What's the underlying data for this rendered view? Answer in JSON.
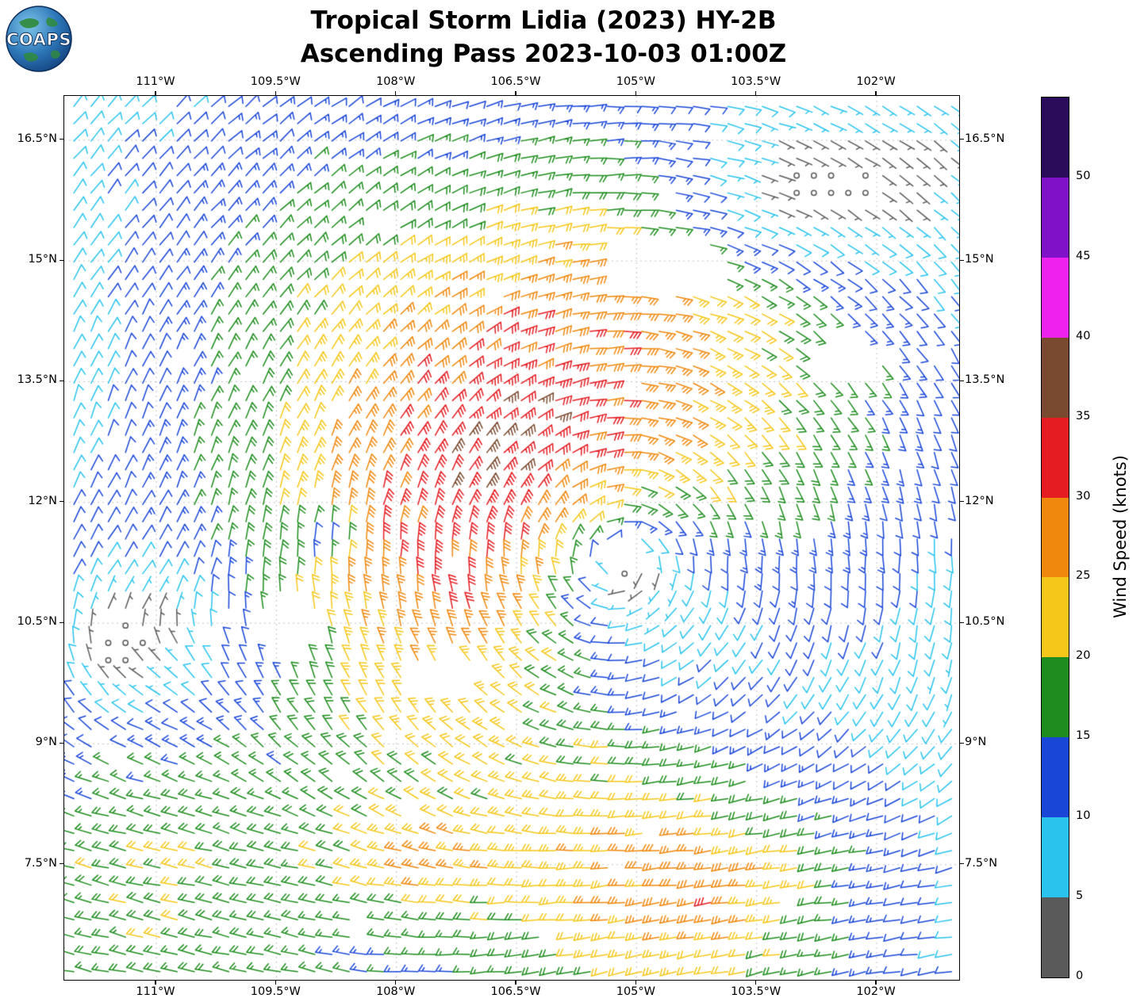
{
  "header": {
    "title_line1": "Tropical Storm Lidia (2023) HY-2B",
    "title_line2": "Ascending Pass 2023-10-03 01:00Z",
    "logo_text": "COAPS"
  },
  "axes": {
    "lon_ticks": [
      {
        "value": -111,
        "label": "111°W"
      },
      {
        "value": -109.5,
        "label": "109.5°W"
      },
      {
        "value": -108,
        "label": "108°W"
      },
      {
        "value": -106.5,
        "label": "106.5°W"
      },
      {
        "value": -105,
        "label": "105°W"
      },
      {
        "value": -103.5,
        "label": "103.5°W"
      },
      {
        "value": -102,
        "label": "102°W"
      }
    ],
    "lat_ticks": [
      {
        "value": 16.5,
        "label": "16.5°N"
      },
      {
        "value": 15,
        "label": "15°N"
      },
      {
        "value": 13.5,
        "label": "13.5°N"
      },
      {
        "value": 12,
        "label": "12°N"
      },
      {
        "value": 10.5,
        "label": "10.5°N"
      },
      {
        "value": 9,
        "label": "9°N"
      },
      {
        "value": 7.5,
        "label": "7.5°N"
      }
    ],
    "lon_range": [
      -112.15,
      -100.95
    ],
    "lat_range": [
      6.05,
      17.05
    ],
    "grid_style": "dotted"
  },
  "colorbar": {
    "label": "Wind Speed (knots)",
    "tick_values": [
      0,
      5,
      10,
      15,
      20,
      25,
      30,
      35,
      40,
      45,
      50
    ],
    "max_value": 55,
    "levels": [
      {
        "min": 0,
        "max": 5,
        "color": "#5a5a5a"
      },
      {
        "min": 5,
        "max": 10,
        "color": "#29c3ee"
      },
      {
        "min": 10,
        "max": 15,
        "color": "#1a46d8"
      },
      {
        "min": 15,
        "max": 20,
        "color": "#1e8c1e"
      },
      {
        "min": 20,
        "max": 25,
        "color": "#f5c71a"
      },
      {
        "min": 25,
        "max": 30,
        "color": "#f0880e"
      },
      {
        "min": 30,
        "max": 35,
        "color": "#e51d23"
      },
      {
        "min": 35,
        "max": 40,
        "color": "#7a4a30"
      },
      {
        "min": 40,
        "max": 45,
        "color": "#ee22ee"
      },
      {
        "min": 45,
        "max": 50,
        "color": "#7f12c8"
      },
      {
        "min": 50,
        "max": 55,
        "color": "#2a0c5a"
      }
    ]
  },
  "chart_data": {
    "type": "wind_barbs",
    "title": "Tropical Storm Lidia (2023) HY-2B Ascending Pass 2023-10-03 01:00Z",
    "storm": "Tropical Storm Lidia (2023)",
    "satellite": "HY-2B",
    "pass_type": "Ascending",
    "pass_time": "2023-10-03 01:00Z",
    "units": "knots",
    "description": "Scatterometer ocean-surface wind barbs colored by speed. Cyclonic circulation centered near 105.2W 11.25N; peak winds 30-35 kt in a spiral band northwest of center; calm gray regions in the upper-right and lower-left; 15-25 kt westerly monsoon flow with 25-30 kt patches south of 9N.",
    "barb": {
      "staff": 21,
      "feather": 9,
      "half": 5,
      "space": 4.4,
      "width": 1.5,
      "calm_r": 3.2,
      "feather_angle_deg": 120
    },
    "wind_model": {
      "seed": 20231003,
      "grid_step": 0.215,
      "main_vortex": {
        "lon": -105.2,
        "lat": 11.25,
        "vmax": 22,
        "rmax": 2.4,
        "shape": 1.15,
        "asym_amp": 0.55,
        "asym_dir": 2.4
      },
      "secondary_vortex": {
        "lon": -111.45,
        "lat": 10.3,
        "vmax": 7,
        "rmax": 1.0,
        "shape": 1.3,
        "asym_amp": 0,
        "asym_dir": 0
      },
      "southern_flow": {
        "lat_start": 9.6,
        "ramp": 2.0,
        "u0": 11,
        "u_amp": 4,
        "u_freq": 0.9,
        "u_phase": -106,
        "v0": 1.5,
        "v_amp": 2.5,
        "v_freq": 0.55,
        "v_phase": -110,
        "v_lat_coef": 0.8
      },
      "northeast_flow": {
        "lat_start": 13.5,
        "ramp": 2.5,
        "lon_start": -107,
        "lon_ramp": 3,
        "u": -3,
        "v": -3
      },
      "speed_bumps": [
        {
          "lon": -107.7,
          "lat": 7.5,
          "sx": 0.9,
          "sy": 0.35,
          "amp": 0.45
        },
        {
          "lon": -103.9,
          "lat": 7.2,
          "sx": 1.4,
          "sy": 0.3,
          "amp": 0.25
        }
      ],
      "calm_regions": [
        {
          "lon": -102.7,
          "lat": 15.95,
          "sx": 2.6,
          "sy": 0.85,
          "strength": 0.88
        },
        {
          "lon": -111.5,
          "lat": 10.25,
          "sx": 0.5,
          "sy": 0.9,
          "strength": 0.85
        },
        {
          "lon": -108.9,
          "lat": 11.55,
          "sx": 0.12,
          "sy": 0.1,
          "strength": 0.6
        }
      ],
      "voids": [
        {
          "lon": -105.15,
          "lat": 11.35,
          "rx": 0.3,
          "ry": 0.22
        },
        {
          "lon": -104.75,
          "lat": 14.95,
          "rx": 0.8,
          "ry": 0.4
        },
        {
          "lon": -102.4,
          "lat": 13.85,
          "rx": 0.5,
          "ry": 0.3
        },
        {
          "lon": -107.35,
          "lat": 9.75,
          "rx": 0.5,
          "ry": 0.3
        },
        {
          "lon": -109.35,
          "lat": 10.35,
          "rx": 0.55,
          "ry": 0.35
        }
      ],
      "dropout": 0.015,
      "noise_speed": 0.08,
      "noise_dir": 0.1
    }
  }
}
